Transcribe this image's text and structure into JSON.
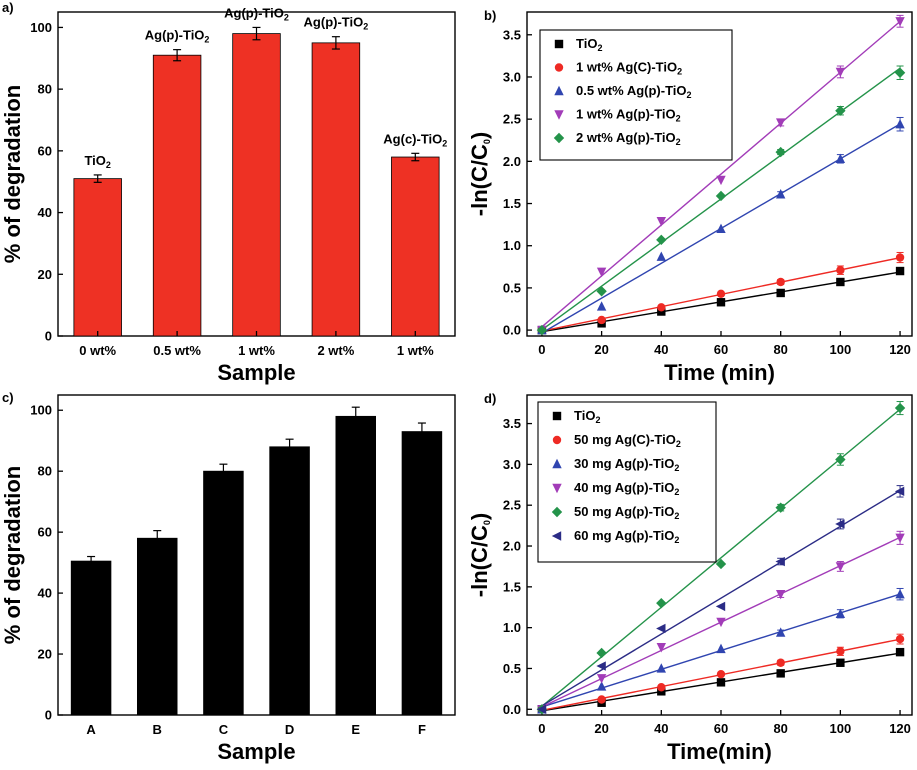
{
  "chart_data": [
    {
      "type": "bar",
      "panel_label": "a)",
      "xlabel": "Sample",
      "ylabel": "% of degradation",
      "ylim": [
        0,
        105
      ],
      "yticks": [
        0,
        20,
        40,
        60,
        80,
        100
      ],
      "categories": [
        "0 wt%",
        "0.5 wt%",
        "1 wt%",
        "2 wt%",
        "1 wt%"
      ],
      "values": [
        51,
        91,
        98,
        95,
        58
      ],
      "errors": [
        1.2,
        1.8,
        2.0,
        2.0,
        1.2
      ],
      "bar_color": "#ee3124",
      "annotations": [
        {
          "base": "TiO",
          "sub": "2"
        },
        {
          "base": "Ag(p)-TiO",
          "sub": "2"
        },
        {
          "base": "Ag(p)-TiO",
          "sub": "2"
        },
        {
          "base": "Ag(p)-TiO",
          "sub": "2"
        },
        {
          "base": "Ag(c)-TiO",
          "sub": "2"
        }
      ]
    },
    {
      "type": "line",
      "panel_label": "b)",
      "xlabel": "Time (min)",
      "ylabel": "-ln(C/C",
      "ylabel_sub": "0",
      "ylabel_end": ")",
      "xlim": [
        -5,
        124
      ],
      "ylim": [
        -0.07,
        3.77
      ],
      "xticks": [
        0,
        20,
        40,
        60,
        80,
        100,
        120
      ],
      "yticks": [
        "0.0",
        "0.5",
        "1.0",
        "1.5",
        "2.0",
        "2.5",
        "3.0",
        "3.5"
      ],
      "x": [
        0,
        20,
        40,
        60,
        80,
        100,
        120
      ],
      "legend_position": "top-left",
      "series": [
        {
          "name_main": "TiO",
          "name_sub": "2",
          "name_after": "",
          "color": "#000000",
          "marker": "square",
          "values": [
            0,
            0.08,
            0.22,
            0.33,
            0.44,
            0.57,
            0.7
          ],
          "errors": [
            0,
            0,
            0,
            0,
            0.02,
            0.03,
            0.04
          ]
        },
        {
          "name_main": "1 wt%   Ag(C)-TiO",
          "name_sub": "2",
          "name_after": "",
          "color": "#ee2a24",
          "marker": "circle",
          "values": [
            0,
            0.12,
            0.27,
            0.43,
            0.57,
            0.71,
            0.86
          ],
          "errors": [
            0,
            0,
            0,
            0,
            0.03,
            0.05,
            0.06
          ]
        },
        {
          "name_main": "0.5 wt% Ag(p)-TiO",
          "name_sub": "2",
          "name_after": "",
          "color": "#3045b0",
          "marker": "triangle-up",
          "values": [
            0,
            0.28,
            0.87,
            1.2,
            1.61,
            2.03,
            2.44
          ],
          "errors": [
            0,
            0,
            0,
            0,
            0.03,
            0.05,
            0.08
          ]
        },
        {
          "name_main": "1 wt%   Ag(p)-TiO",
          "name_sub": "2",
          "name_after": "",
          "color": "#a23cb8",
          "marker": "triangle-down",
          "values": [
            0,
            0.69,
            1.29,
            1.78,
            2.46,
            3.06,
            3.66
          ],
          "errors": [
            0,
            0,
            0,
            0,
            0.04,
            0.07,
            0.07
          ]
        },
        {
          "name_main": "2 wt%   Ag(p)-TiO",
          "name_sub": "2",
          "name_after": "",
          "color": "#24934a",
          "marker": "diamond",
          "values": [
            0,
            0.46,
            1.07,
            1.59,
            2.11,
            2.6,
            3.05
          ],
          "errors": [
            0,
            0,
            0,
            0,
            0.03,
            0.05,
            0.08
          ]
        }
      ]
    },
    {
      "type": "bar",
      "panel_label": "c)",
      "xlabel": "Sample",
      "ylabel": "% of degradation",
      "ylim": [
        0,
        105
      ],
      "yticks": [
        0,
        20,
        40,
        60,
        80,
        100
      ],
      "categories": [
        "A",
        "B",
        "C",
        "D",
        "E",
        "F"
      ],
      "values": [
        50.5,
        58,
        80,
        88,
        98,
        93
      ],
      "errors": [
        1.5,
        2.5,
        2.3,
        2.5,
        3.0,
        2.8
      ],
      "bar_color": "#000000",
      "annotations": []
    },
    {
      "type": "line",
      "panel_label": "d)",
      "xlabel": "Time(min)",
      "ylabel": "-ln(C/C",
      "ylabel_sub": "0",
      "ylabel_end": ")",
      "xlim": [
        -5,
        124
      ],
      "ylim": [
        -0.07,
        3.85
      ],
      "xticks": [
        0,
        20,
        40,
        60,
        80,
        100,
        120
      ],
      "yticks": [
        "0.0",
        "0.5",
        "1.0",
        "1.5",
        "2.0",
        "2.5",
        "3.0",
        "3.5"
      ],
      "x": [
        0,
        20,
        40,
        60,
        80,
        100,
        120
      ],
      "legend_position": "top-left",
      "series": [
        {
          "name_main": "TiO",
          "name_sub": "2",
          "name_after": "",
          "color": "#000000",
          "marker": "square",
          "values": [
            0,
            0.08,
            0.22,
            0.33,
            0.44,
            0.57,
            0.7
          ],
          "errors": [
            0,
            0,
            0,
            0,
            0.02,
            0.03,
            0.04
          ]
        },
        {
          "name_main": "50 mg Ag(C)-TiO",
          "name_sub": "2",
          "name_after": "",
          "color": "#ee2a24",
          "marker": "circle",
          "values": [
            0,
            0.12,
            0.27,
            0.43,
            0.57,
            0.71,
            0.86
          ],
          "errors": [
            0,
            0,
            0,
            0,
            0.03,
            0.05,
            0.06
          ]
        },
        {
          "name_main": "30 mg Ag(p)-TiO",
          "name_sub": "2",
          "name_after": "",
          "color": "#3045b0",
          "marker": "triangle-up",
          "values": [
            0,
            0.28,
            0.5,
            0.74,
            0.94,
            1.17,
            1.41
          ],
          "errors": [
            0,
            0,
            0,
            0,
            0.03,
            0.05,
            0.07
          ]
        },
        {
          "name_main": "40 mg Ag(p)-TiO",
          "name_sub": "2",
          "name_after": "",
          "color": "#a23cb8",
          "marker": "triangle-down",
          "values": [
            0,
            0.38,
            0.76,
            1.07,
            1.41,
            1.75,
            2.1
          ],
          "errors": [
            0,
            0,
            0,
            0,
            0.04,
            0.06,
            0.08
          ]
        },
        {
          "name_main": "50 mg Ag(p)-TiO",
          "name_sub": "2",
          "name_after": "",
          "color": "#24934a",
          "marker": "diamond",
          "values": [
            0,
            0.69,
            1.3,
            1.78,
            2.47,
            3.06,
            3.69
          ],
          "errors": [
            0,
            0,
            0,
            0,
            0.04,
            0.07,
            0.08
          ]
        },
        {
          "name_main": "60  mg Ag(p)-TiO",
          "name_sub": "2",
          "name_after": "",
          "color": "#2b2c86",
          "marker": "triangle-left",
          "values": [
            0,
            0.53,
            0.99,
            1.26,
            1.81,
            2.27,
            2.67
          ],
          "errors": [
            0,
            0,
            0,
            0,
            0.04,
            0.06,
            0.07
          ]
        }
      ]
    }
  ]
}
